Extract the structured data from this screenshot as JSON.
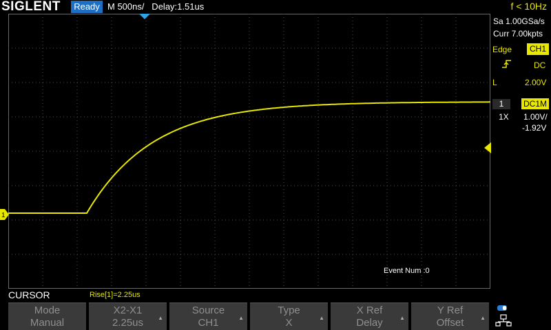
{
  "topbar": {
    "brand": "SIGLENT",
    "status": "Ready",
    "timebase": "M 500ns/   Delay:1.51us",
    "frequency": "f < 10Hz"
  },
  "acquisition": {
    "sample_rate": "Sa 1.00GSa/s",
    "memory": "Curr 7.00kpts"
  },
  "trigger": {
    "type": "Edge",
    "source": "CH1",
    "slope_icon": "rising-edge-icon",
    "coupling": "DC",
    "level_label": "L",
    "level": "2.00V"
  },
  "channel": {
    "number": "1",
    "coupling": "DC1M",
    "probe": "1X",
    "scale": "1.00V/",
    "offset": "-1.92V",
    "marker_label": "1"
  },
  "measurement": {
    "rise": "Rise[1]=2.25us",
    "event_num": "Event Num :0"
  },
  "menu": {
    "title": "CURSOR",
    "softkeys": [
      {
        "line1": "Mode",
        "line2": "Manual",
        "has_arrow": false
      },
      {
        "line1": "X2-X1",
        "line2": "2.25us",
        "has_arrow": true
      },
      {
        "line1": "Source",
        "line2": "CH1",
        "has_arrow": true
      },
      {
        "line1": "Type",
        "line2": "X",
        "has_arrow": true
      },
      {
        "line1": "X Ref",
        "line2": "Delay",
        "has_arrow": true
      },
      {
        "line1": "Y Ref",
        "line2": "Offset",
        "has_arrow": true
      }
    ]
  },
  "colors": {
    "channel1": "#e8e800",
    "accent_blue": "#1d6fc5",
    "grid": "#505050",
    "softkey_bg": "#3a3a3a"
  }
}
